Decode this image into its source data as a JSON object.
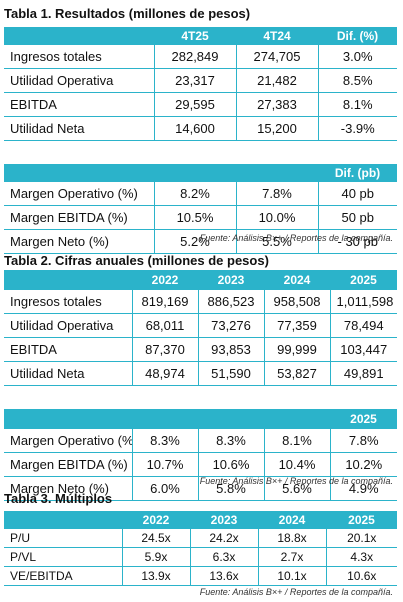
{
  "t1": {
    "title": "Tabla 1. Resultados (millones de pesos)",
    "headers": [
      "",
      "4T25",
      "4T24",
      "Dif. (%)"
    ],
    "rows": [
      [
        "Ingresos totales",
        "282,849",
        "274,705",
        "3.0%"
      ],
      [
        "Utilidad Operativa",
        "23,317",
        "21,482",
        "8.5%"
      ],
      [
        "EBITDA",
        "29,595",
        "27,383",
        "8.1%"
      ],
      [
        "Utilidad Neta",
        "14,600",
        "15,200",
        "-3.9%"
      ]
    ],
    "headers2": [
      "",
      "",
      "",
      "Dif. (pb)"
    ],
    "rows2": [
      [
        "Margen Operativo (%)",
        "8.2%",
        "7.8%",
        "40 pb"
      ],
      [
        "Margen EBITDA (%)",
        "10.5%",
        "10.0%",
        "50 pb"
      ],
      [
        "Margen Neto (%)",
        "5.2%",
        "5.5%",
        "- 30 pb"
      ]
    ],
    "source": "Fuente: Análisis B×+ / Reportes de la compañía."
  },
  "t2": {
    "title": "Tabla 2. Cifras anuales (millones de pesos)",
    "headers": [
      "",
      "2022",
      "2023",
      "2024",
      "2025"
    ],
    "rows": [
      [
        "Ingresos totales",
        "819,169",
        "886,523",
        "958,508",
        "1,011,598"
      ],
      [
        "Utilidad Operativa",
        "68,011",
        "73,276",
        "77,359",
        "78,494"
      ],
      [
        "EBITDA",
        "87,370",
        "93,853",
        "99,999",
        "103,447"
      ],
      [
        "Utilidad Neta",
        "48,974",
        "51,590",
        "53,827",
        "49,891"
      ]
    ],
    "headers2": [
      "",
      "",
      "",
      "",
      "2025"
    ],
    "rows2": [
      [
        "Margen Operativo (%)",
        "8.3%",
        "8.3%",
        "8.1%",
        "7.8%"
      ],
      [
        "Margen EBITDA (%)",
        "10.7%",
        "10.6%",
        "10.4%",
        "10.2%"
      ],
      [
        "Margen Neto (%)",
        "6.0%",
        "5.8%",
        "5.6%",
        "4.9%"
      ]
    ],
    "source": "Fuente: Análisis B×+ / Reportes de la compañía."
  },
  "t3": {
    "title": "Tabla 3. Múltiplos",
    "headers": [
      "",
      "2022",
      "2023",
      "2024",
      "2025"
    ],
    "rows": [
      [
        "P/U",
        "24.5x",
        "24.2x",
        "18.8x",
        "20.1x"
      ],
      [
        "P/VL",
        "5.9x",
        "6.3x",
        "2.7x",
        "4.3x"
      ],
      [
        "VE/EBITDA",
        "13.9x",
        "13.6x",
        "10.1x",
        "10.6x"
      ]
    ],
    "source": "Fuente: Análisis B×+ / Reportes de la compañía."
  },
  "colors": {
    "accent": "#2bb3ca",
    "header_text": "#ffffff"
  }
}
